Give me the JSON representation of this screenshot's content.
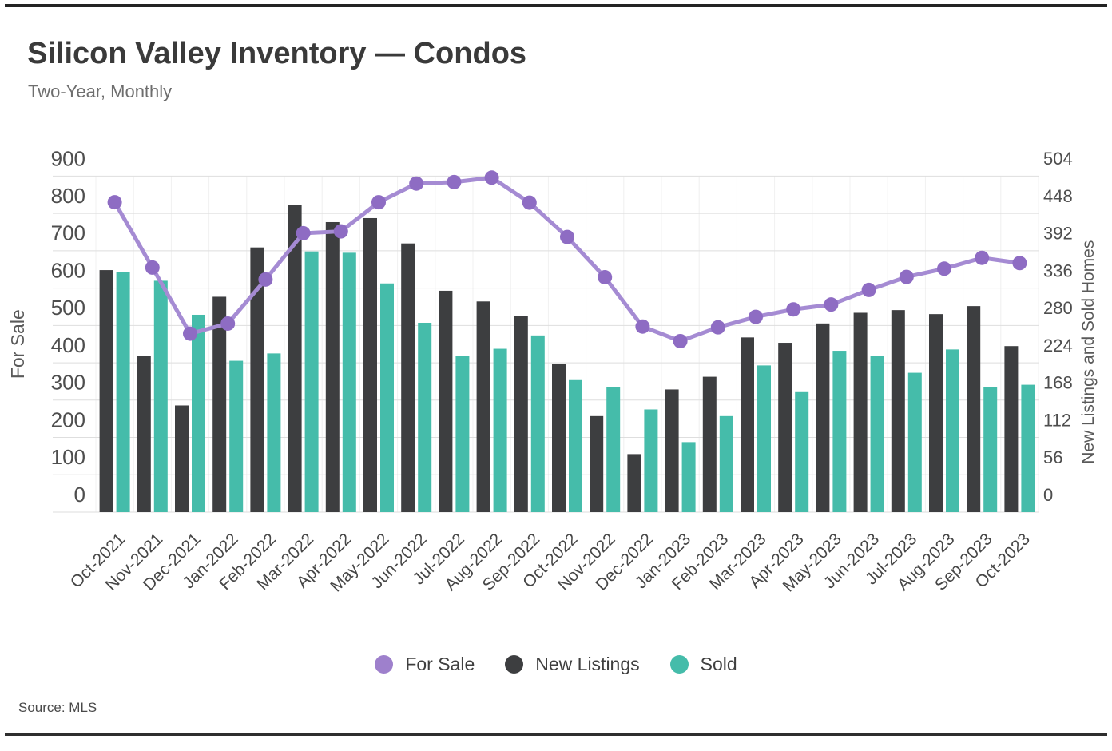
{
  "header": {
    "title": "Silicon Valley Inventory — Condos",
    "subtitle": "Two-Year, Monthly"
  },
  "source": {
    "label": "Source: MLS"
  },
  "colors": {
    "for_sale_line": "#A58BD3",
    "for_sale_marker": "#8E6CC3",
    "for_sale_legend": "#9E80CC",
    "new_listings": "#3D3E40",
    "sold": "#45BCAA",
    "grid": "#dedede",
    "grid_vertical": "#f0f0f0",
    "tick_text": "#4e4e4e",
    "axis_title_text": "#5a5a5a",
    "x_label_text": "#464646"
  },
  "legend": {
    "items": [
      {
        "label": "For Sale",
        "series": "For Sale"
      },
      {
        "label": "New Listings",
        "series": "New Listings"
      },
      {
        "label": "Sold",
        "series": "Sold"
      }
    ]
  },
  "chart_data": {
    "type": "bar+line combo",
    "title": "Silicon Valley Inventory — Condos",
    "subtitle": "Two-Year, Monthly",
    "grid": true,
    "legend_position": "bottom",
    "x_label_rotation": -45,
    "categories": [
      "Oct-2021",
      "Nov-2021",
      "Dec-2021",
      "Jan-2022",
      "Feb-2022",
      "Mar-2022",
      "Apr-2022",
      "May-2022",
      "Jun-2022",
      "Jul-2022",
      "Aug-2022",
      "Sep-2022",
      "Oct-2022",
      "Nov-2022",
      "Dec-2022",
      "Jan-2023",
      "Feb-2023",
      "Mar-2023",
      "Apr-2023",
      "May-2023",
      "Jun-2023",
      "Jul-2023",
      "Aug-2023",
      "Sep-2023",
      "Oct-2023"
    ],
    "left_axis": {
      "title": "For Sale",
      "min": 0,
      "max": 900,
      "tick_step": 100,
      "ticks": [
        0,
        100,
        200,
        300,
        400,
        500,
        600,
        700,
        800,
        900
      ]
    },
    "right_axis": {
      "title": "New Listings and Sold Homes",
      "min": 0,
      "max": 504,
      "tick_step": 56,
      "ticks": [
        0,
        56,
        112,
        168,
        224,
        280,
        336,
        392,
        448,
        504
      ]
    },
    "series": [
      {
        "name": "For Sale",
        "type": "line",
        "axis": "left",
        "values": [
          830,
          655,
          478,
          505,
          623,
          747,
          752,
          830,
          880,
          884,
          896,
          829,
          737,
          629,
          497,
          458,
          495,
          523,
          543,
          556,
          595,
          630,
          652,
          681,
          667
        ]
      },
      {
        "name": "New Listings",
        "type": "bar",
        "axis": "right",
        "values": [
          363,
          234,
          160,
          323,
          397,
          461,
          435,
          441,
          403,
          332,
          316,
          294,
          222,
          144,
          87,
          184,
          203,
          262,
          254,
          283,
          299,
          303,
          297,
          309,
          249
        ]
      },
      {
        "name": "Sold",
        "type": "bar",
        "axis": "right",
        "values": [
          360,
          347,
          296,
          227,
          238,
          391,
          389,
          343,
          284,
          234,
          245,
          265,
          198,
          188,
          154,
          105,
          144,
          220,
          180,
          242,
          234,
          209,
          244,
          188,
          191
        ]
      }
    ]
  }
}
